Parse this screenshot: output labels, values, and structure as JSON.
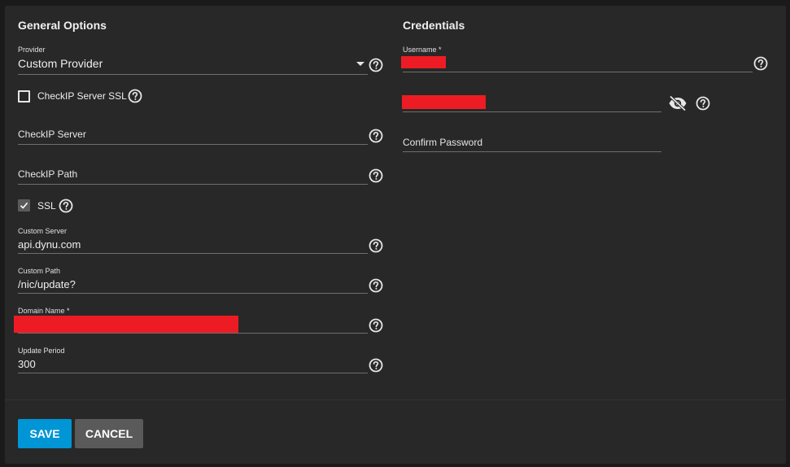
{
  "general": {
    "title": "General Options",
    "provider": {
      "label": "Provider",
      "value": "Custom Provider"
    },
    "checkip_ssl": {
      "label": "CheckIP Server SSL",
      "checked": false
    },
    "checkip_server": {
      "placeholder": "CheckIP Server",
      "value": ""
    },
    "checkip_path": {
      "placeholder": "CheckIP Path",
      "value": ""
    },
    "ssl": {
      "label": "SSL",
      "checked": true
    },
    "custom_server": {
      "label": "Custom Server",
      "value": "api.dynu.com"
    },
    "custom_path": {
      "label": "Custom Path",
      "value": "/nic/update?"
    },
    "domain_name": {
      "label": "Domain Name *",
      "value_redacted": true
    },
    "update_period": {
      "label": "Update Period",
      "value": "300"
    }
  },
  "credentials": {
    "title": "Credentials",
    "username": {
      "label": "Username *",
      "value_redacted": true
    },
    "password": {
      "value_redacted": true,
      "visibility_icon": "eye-off-icon"
    },
    "confirm_password": {
      "placeholder": "Confirm Password",
      "value": ""
    }
  },
  "actions": {
    "save_label": "SAVE",
    "cancel_label": "CANCEL"
  },
  "colors": {
    "background": "#1a1a1a",
    "card": "#282828",
    "primary": "#0095d5",
    "secondary": "#5a5a5a",
    "redaction": "#ed1c24"
  }
}
